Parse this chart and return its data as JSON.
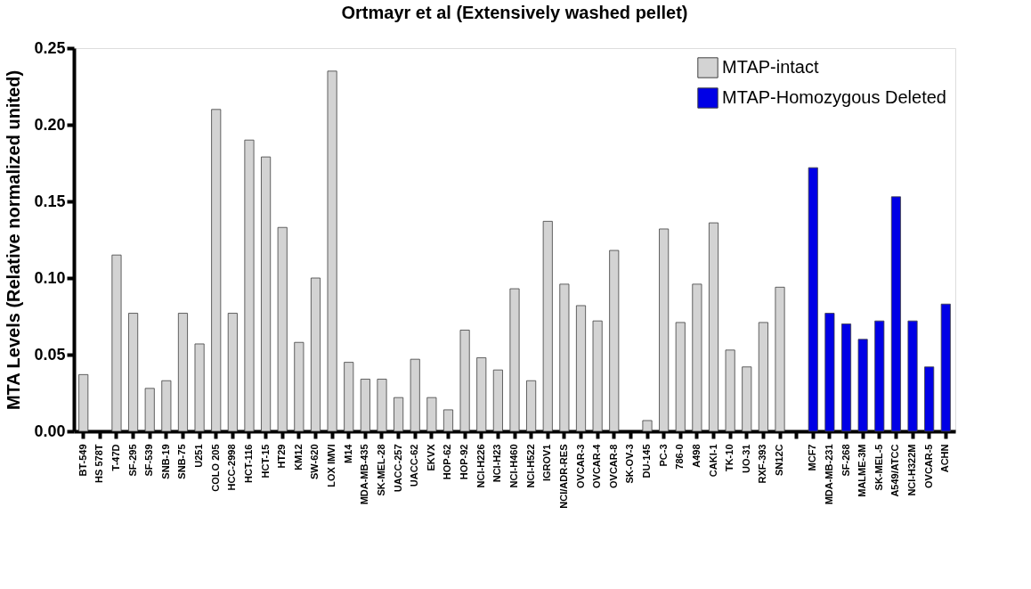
{
  "chart_data": {
    "type": "bar",
    "title": "Ortmayr et al (Extensively washed pellet)",
    "ylabel": "MTA Levels (Relative normalized united)",
    "categories": [
      "BT-549",
      "HS 578T",
      "T-47D",
      "SF-295",
      "SF-539",
      "SNB-19",
      "SNB-75",
      "U251",
      "COLO 205",
      "HCC-2998",
      "HCT-116",
      "HCT-15",
      "HT29",
      "KM12",
      "SW-620",
      "LOX IMVI",
      "M14",
      "MDA-MB-435",
      "SK-MEL-28",
      "UACC-257",
      "UACC-62",
      "EKVX",
      "HOP-62",
      "HOP-92",
      "NCI-H226",
      "NCI-H23",
      "NCI-H460",
      "NCI-H522",
      "IGROV1",
      "NCI/ADR-RES",
      "OVCAR-3",
      "OVCAR-4",
      "OVCAR-8",
      "SK-OV-3",
      "DU-145",
      "PC-3",
      "786-0",
      "A498",
      "CAKI-1",
      "TK-10",
      "UO-31",
      "RXF-393",
      "SN12C",
      null,
      "MCF7",
      "MDA-MB-231",
      "SF-268",
      "MALME-3M",
      "SK-MEL-5",
      "A549/ATCC",
      "NCI-H322M",
      "OVCAR-5",
      "ACHN"
    ],
    "series": [
      {
        "name": "MTAP-intact",
        "color": "#d3d3d3",
        "values": [
          0.037,
          null,
          0.115,
          0.077,
          0.028,
          0.033,
          0.077,
          0.057,
          0.21,
          0.077,
          0.19,
          0.179,
          0.133,
          0.058,
          0.1,
          0.235,
          0.045,
          0.034,
          0.034,
          0.022,
          0.047,
          0.022,
          0.014,
          0.066,
          0.048,
          0.04,
          0.093,
          0.033,
          0.137,
          0.096,
          0.082,
          0.072,
          0.118,
          null,
          0.007,
          0.132,
          0.071,
          0.096,
          0.136,
          0.053,
          0.042,
          0.071,
          0.094,
          null,
          null,
          null,
          null,
          null,
          null,
          null,
          null,
          null,
          null
        ]
      },
      {
        "name": "MTAP-Homozygous Deleted",
        "color": "#0000e6",
        "values": [
          null,
          null,
          null,
          null,
          null,
          null,
          null,
          null,
          null,
          null,
          null,
          null,
          null,
          null,
          null,
          null,
          null,
          null,
          null,
          null,
          null,
          null,
          null,
          null,
          null,
          null,
          null,
          null,
          null,
          null,
          null,
          null,
          null,
          null,
          null,
          null,
          null,
          null,
          null,
          null,
          null,
          null,
          null,
          null,
          0.172,
          0.077,
          0.07,
          0.06,
          0.072,
          0.153,
          0.072,
          0.042,
          0.083
        ]
      }
    ],
    "ylim": [
      0,
      0.25
    ],
    "yticks": [
      {
        "value": 0,
        "label": "0.00"
      },
      0.05,
      {
        "value": 0.1,
        "label": "0.10"
      },
      0.15,
      {
        "value": 0.2,
        "label": "0.20"
      },
      0.25
    ],
    "grid": false,
    "legend": "top right"
  }
}
